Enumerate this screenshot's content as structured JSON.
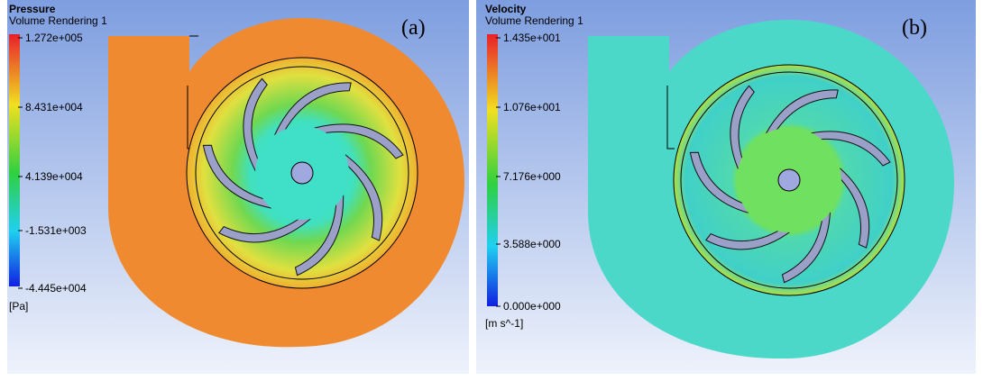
{
  "panels": [
    {
      "title": "Pressure",
      "subtitle": "Volume Rendering 1",
      "label": "(a)",
      "legend_labels": [
        "1.272e+005",
        "8.431e+004",
        "4.139e+004",
        "-1.531e+003",
        "-4.445e+004"
      ],
      "unit": "[Pa]"
    },
    {
      "title": "Velocity",
      "subtitle": "Volume Rendering 1",
      "label": "(b)",
      "legend_labels": [
        "1.435e+001",
        "1.076e+001",
        "7.176e+000",
        "3.588e+000",
        "0.000e+000"
      ],
      "unit": "[m s^-1]"
    }
  ]
}
